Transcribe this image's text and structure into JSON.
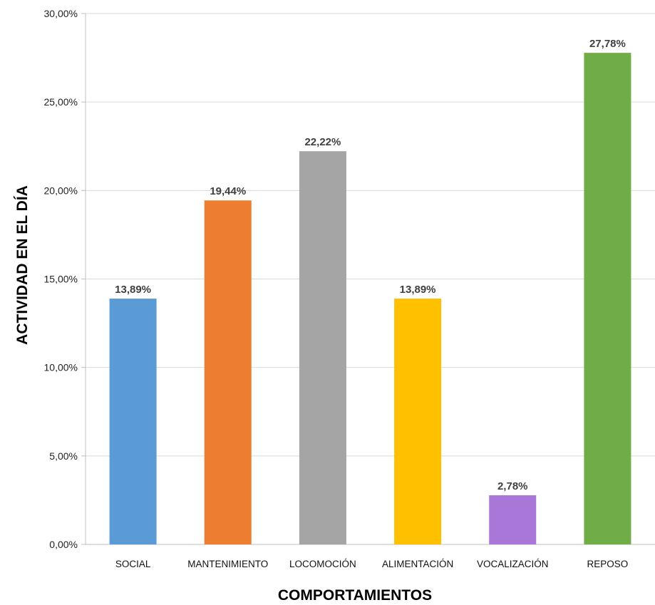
{
  "chart_data": {
    "type": "bar",
    "title": "",
    "xlabel": "COMPORTAMIENTOS",
    "ylabel": "ACTIVIDAD EN EL DÍA",
    "categories": [
      "SOCIAL",
      "MANTENIMIENTO",
      "LOCOMOCIÓN",
      "ALIMENTACIÓN",
      "VOCALIZACIÓN",
      "REPOSO"
    ],
    "values": [
      13.89,
      19.44,
      22.22,
      13.89,
      2.78,
      27.78
    ],
    "data_labels": [
      "13,89%",
      "19,44%",
      "22,22%",
      "13,89%",
      "2,78%",
      "27,78%"
    ],
    "bar_colors": [
      "#5B9BD5",
      "#ED7D31",
      "#A5A5A5",
      "#FFC000",
      "#A877D8",
      "#70AD47"
    ],
    "ylim": [
      0,
      30
    ],
    "yticks": [
      0,
      5,
      10,
      15,
      20,
      25,
      30
    ],
    "ytick_labels": [
      "0,00%",
      "5,00%",
      "10,00%",
      "15,00%",
      "20,00%",
      "25,00%",
      "30,00%"
    ],
    "grid": true,
    "legend": "none"
  }
}
